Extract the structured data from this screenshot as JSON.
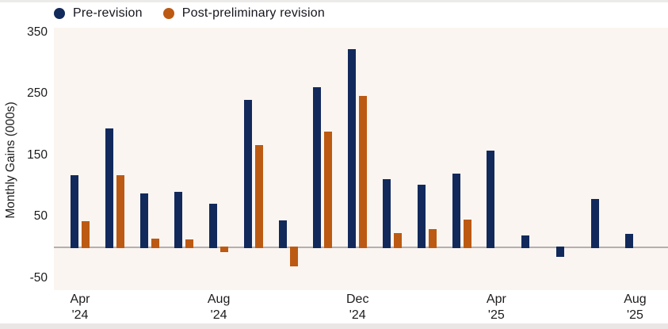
{
  "y_axis": {
    "title": "Monthly Gains (000s)",
    "ticks": [
      350,
      250,
      150,
      50,
      -50
    ]
  },
  "x_axis": {
    "labels": [
      {
        "month": 0,
        "line1": "Apr",
        "line2": "'24"
      },
      {
        "month": 4,
        "line1": "Aug",
        "line2": "'24"
      },
      {
        "month": 8,
        "line1": "Dec",
        "line2": "'24"
      },
      {
        "month": 12,
        "line1": "Apr",
        "line2": "'25"
      },
      {
        "month": 16,
        "line1": "Aug",
        "line2": "'25"
      }
    ]
  },
  "chart_data": {
    "type": "bar",
    "title": "",
    "xlabel": "",
    "ylabel": "Monthly Gains (000s)",
    "ylim": [
      -50,
      350
    ],
    "grid": false,
    "legend_position": "top-left",
    "categories": [
      "Apr '24",
      "May '24",
      "Jun '24",
      "Jul '24",
      "Aug '24",
      "Sep '24",
      "Oct '24",
      "Nov '24",
      "Dec '24",
      "Jan '25",
      "Feb '25",
      "Mar '25",
      "Apr '25",
      "May '25",
      "Jun '25",
      "Jul '25",
      "Aug '25"
    ],
    "series": [
      {
        "name": "Pre-revision",
        "color": "#12295c",
        "values": [
          118,
          193,
          88,
          90,
          71,
          240,
          44,
          261,
          323,
          111,
          102,
          120,
          158,
          19,
          -13,
          79,
          22
        ]
      },
      {
        "name": "Post-preliminary revision",
        "color": "#bc5a13",
        "values": [
          43,
          118,
          14,
          13,
          -5,
          166,
          -28,
          188,
          247,
          23,
          30,
          45,
          null,
          null,
          null,
          null,
          null
        ]
      }
    ]
  }
}
